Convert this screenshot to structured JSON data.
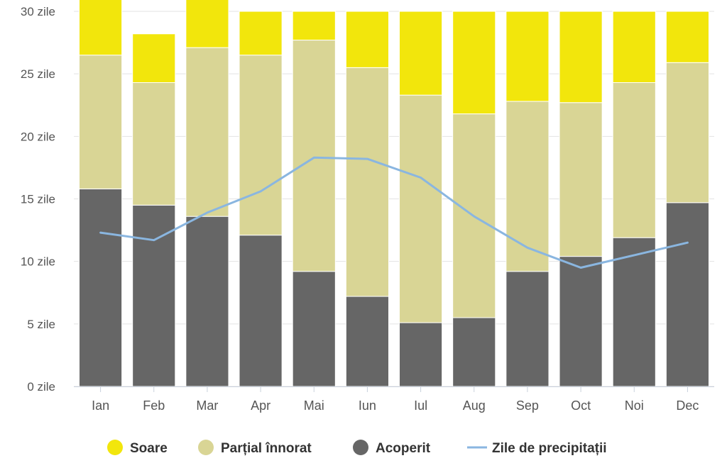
{
  "chart_data": {
    "type": "bar",
    "stacked": true,
    "categories": [
      "Ian",
      "Feb",
      "Mar",
      "Apr",
      "Mai",
      "Iun",
      "Iul",
      "Aug",
      "Sep",
      "Oct",
      "Noi",
      "Dec"
    ],
    "series": [
      {
        "name": "Acoperit",
        "color": "#666666",
        "values": [
          15.8,
          14.5,
          13.6,
          12.1,
          9.2,
          7.2,
          5.1,
          5.5,
          9.2,
          10.4,
          11.9,
          14.7
        ]
      },
      {
        "name": "Parțial înnorat",
        "color": "#d9d595",
        "values": [
          10.7,
          9.8,
          13.5,
          14.4,
          18.5,
          18.3,
          18.2,
          16.3,
          13.6,
          12.3,
          12.4,
          11.2
        ]
      },
      {
        "name": "Soare",
        "color": "#f2e60c",
        "values": [
          4.5,
          3.9,
          3.9,
          3.5,
          2.3,
          4.5,
          6.7,
          8.2,
          7.2,
          7.3,
          5.7,
          4.1
        ]
      }
    ],
    "line_series": {
      "name": "Zile de precipitații",
      "color": "#8ab6e0",
      "values": [
        12.3,
        11.7,
        13.9,
        15.6,
        18.3,
        18.2,
        16.7,
        13.6,
        11.1,
        9.5,
        10.5,
        11.5
      ]
    },
    "y_ticks": [
      "0 zile",
      "5 zile",
      "10 zile",
      "15 zile",
      "20 zile",
      "25 zile",
      "30 zile"
    ],
    "y_tick_values": [
      0,
      5,
      10,
      15,
      20,
      25,
      30
    ],
    "ylim": [
      0,
      30
    ],
    "grid": true,
    "legend": {
      "position": "bottom",
      "items": [
        {
          "label": "Soare",
          "color": "#f2e60c",
          "symbol": "circle"
        },
        {
          "label": "Parțial înnorat",
          "color": "#d9d595",
          "symbol": "circle"
        },
        {
          "label": "Acoperit",
          "color": "#666666",
          "symbol": "circle"
        },
        {
          "label": "Zile de precipitații",
          "color": "#8ab6e0",
          "symbol": "line"
        }
      ]
    }
  }
}
